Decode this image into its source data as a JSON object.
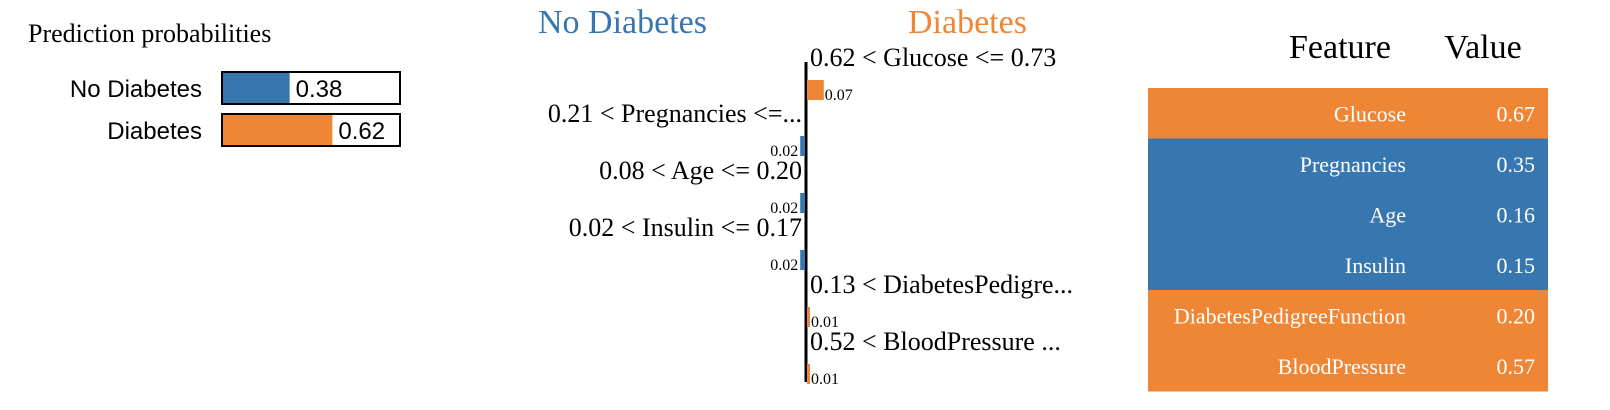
{
  "colors": {
    "negative": "#3876af",
    "positive": "#ef8636",
    "text": "#000000",
    "white": "#ffffff"
  },
  "prediction_panel": {
    "title": "Prediction probabilities",
    "rows": [
      {
        "label": "No Diabetes",
        "value": 0.38,
        "text": "0.38",
        "color": "#3876af"
      },
      {
        "label": "Diabetes",
        "value": 0.62,
        "text": "0.62",
        "color": "#ef8636"
      }
    ]
  },
  "chart_data": {
    "type": "bar",
    "left_class": "No Diabetes",
    "right_class": "Diabetes",
    "bars": [
      {
        "condition": "0.62 < Glucose <= 0.73",
        "weight": 0.07,
        "weight_text": "0.07"
      },
      {
        "condition": "0.21 < Pregnancies <=...",
        "weight": -0.02,
        "weight_text": "0.02"
      },
      {
        "condition": "0.08 < Age <= 0.20",
        "weight": -0.02,
        "weight_text": "0.02"
      },
      {
        "condition": "0.02 < Insulin <= 0.17",
        "weight": -0.02,
        "weight_text": "0.02"
      },
      {
        "condition": "0.13 < DiabetesPedigre...",
        "weight": 0.01,
        "weight_text": "0.01"
      },
      {
        "condition": "0.52 < BloodPressure ...",
        "weight": 0.01,
        "weight_text": "0.01"
      }
    ]
  },
  "feature_table": {
    "headers": {
      "feature": "Feature",
      "value": "Value"
    },
    "rows": [
      {
        "feature": "Glucose",
        "value": "0.67",
        "color": "#ef8636"
      },
      {
        "feature": "Pregnancies",
        "value": "0.35",
        "color": "#3876af"
      },
      {
        "feature": "Age",
        "value": "0.16",
        "color": "#3876af"
      },
      {
        "feature": "Insulin",
        "value": "0.15",
        "color": "#3876af"
      },
      {
        "feature": "DiabetesPedigreeFunction",
        "value": "0.20",
        "color": "#ef8636"
      },
      {
        "feature": "BloodPressure",
        "value": "0.57",
        "color": "#ef8636"
      }
    ]
  }
}
